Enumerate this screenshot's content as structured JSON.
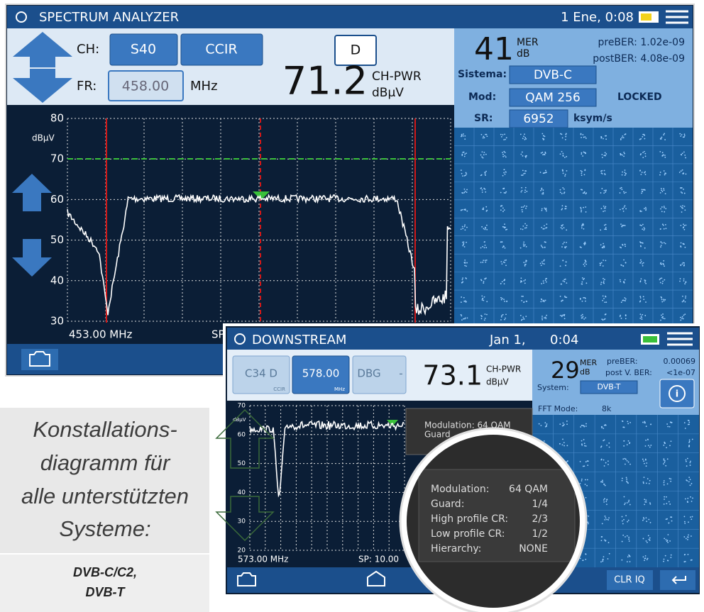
{
  "screen1": {
    "title": "SPECTRUM ANALYZER",
    "datetime": "1 Ene, 0:08",
    "ch_label": "CH:",
    "channel": "S40",
    "plan": "CCIR",
    "mode": "D",
    "fr_label": "FR:",
    "frequency": "458.00",
    "freq_unit": "MHz",
    "power": "71.2",
    "power_label": "CH-PWR",
    "power_unit": "dBµV",
    "mer": "41",
    "mer_label": "MER",
    "mer_unit": "dB",
    "preber": "preBER: 1.02e-09",
    "postber": "postBER: 4.08e-09",
    "system_label": "Sistema:",
    "system": "DVB-C",
    "mod_label": "Mod:",
    "mod": "QAM 256",
    "status": "LOCKED",
    "sr_label": "SR:",
    "sr": "6952",
    "sr_unit": "ksym/s",
    "y_unit": "dBµV",
    "y_labels": [
      "80",
      "70",
      "60",
      "50",
      "40",
      "30"
    ],
    "start_freq": "453.00 MHz",
    "span": "SP"
  },
  "screen2": {
    "title": "DOWNSTREAM",
    "date": "Jan 1,",
    "time": "0:04",
    "channel": "C34 D",
    "channel_plan": "CCIR",
    "frequency": "578.00",
    "freq_unit": "MHz",
    "mode": "DBG",
    "mode_value": "-",
    "power": "73.1",
    "power_label": "CH-PWR",
    "power_unit": "dBµV",
    "mer": "29",
    "mer_label": "MER",
    "mer_unit": "dB",
    "preber_label": "preBER:",
    "preber": "0.00069",
    "postber_label": "post V. BER:",
    "postber": "<1e-07",
    "system_label": "System:",
    "system": "DVB-T",
    "fft_label": "FFT Mode:",
    "fft": "8k",
    "y_unit": "dBµV",
    "y_labels": [
      "70",
      "60",
      "50",
      "40",
      "30",
      "20"
    ],
    "start_freq": "573.00 MHz",
    "span": "SP: 10.00",
    "popup": "Modulation: 64 QAM",
    "popup_line2": "Guard",
    "clear_button": "CLR IQ"
  },
  "magnifier": {
    "rows": [
      [
        "Modulation:",
        "64 QAM"
      ],
      [
        "Guard:",
        "1/4"
      ],
      [
        "High profile CR:",
        "2/3"
      ],
      [
        "Low profile CR:",
        "1/2"
      ],
      [
        "Hierarchy:",
        "NONE"
      ]
    ]
  },
  "caption": {
    "lines": [
      "Konstallations-",
      "diagramm für",
      "alle unterstützten",
      "Systeme:"
    ],
    "systems": [
      "DVB-C/C2,",
      "DVB-T"
    ]
  }
}
